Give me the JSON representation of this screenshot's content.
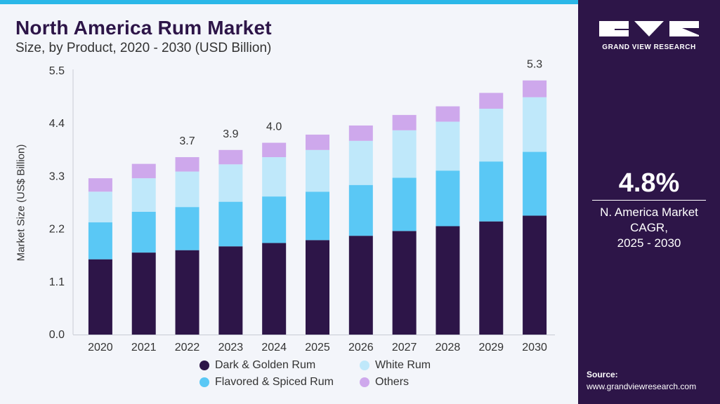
{
  "title": "North America Rum Market",
  "subtitle": "Size, by Product, 2020 - 2030 (USD Billion)",
  "colors": {
    "dark": "#2d1548",
    "flavored": "#5ac8f5",
    "white": "#bfe8fa",
    "others": "#cea8ec",
    "accent": "#2ab7e8"
  },
  "chart_data": {
    "type": "bar",
    "stacked": true,
    "categories": [
      "2020",
      "2021",
      "2022",
      "2023",
      "2024",
      "2025",
      "2026",
      "2027",
      "2028",
      "2029",
      "2030"
    ],
    "series": [
      {
        "name": "Dark & Golden Rum",
        "color": "#2d1548",
        "values": [
          1.57,
          1.71,
          1.76,
          1.84,
          1.91,
          1.97,
          2.06,
          2.16,
          2.26,
          2.36,
          2.48
        ]
      },
      {
        "name": "Flavored & Spiced Rum",
        "color": "#5ac8f5",
        "values": [
          0.77,
          0.85,
          0.9,
          0.93,
          0.97,
          1.01,
          1.06,
          1.11,
          1.16,
          1.25,
          1.33
        ]
      },
      {
        "name": "White Rum",
        "color": "#bfe8fa",
        "values": [
          0.64,
          0.7,
          0.74,
          0.78,
          0.82,
          0.87,
          0.92,
          0.99,
          1.02,
          1.1,
          1.14
        ]
      },
      {
        "name": "Others",
        "color": "#cea8ec",
        "values": [
          0.28,
          0.3,
          0.3,
          0.3,
          0.3,
          0.32,
          0.32,
          0.32,
          0.32,
          0.33,
          0.35
        ]
      }
    ],
    "total_labels": [
      "",
      "",
      "3.7",
      "3.9",
      "4.0",
      "",
      "",
      "",
      "",
      "",
      "5.3"
    ],
    "title": "North America Rum Market",
    "xlabel": "",
    "ylabel": "Market Size (US$ Billion)",
    "ylim": [
      0,
      5.5
    ],
    "yticks": [
      "0.0",
      "1.1",
      "2.2",
      "3.3",
      "4.4",
      "5.5"
    ],
    "legend_position": "bottom"
  },
  "legend": {
    "items": [
      {
        "label": "Dark & Golden Rum",
        "color": "#2d1548"
      },
      {
        "label": "White Rum",
        "color": "#bfe8fa"
      },
      {
        "label": "Flavored & Spiced Rum",
        "color": "#5ac8f5"
      },
      {
        "label": "Others",
        "color": "#cea8ec"
      }
    ]
  },
  "side": {
    "logo_text": "GRAND VIEW RESEARCH",
    "cagr_value": "4.8%",
    "cagr_line1": "N. America Market",
    "cagr_line2": "CAGR,",
    "cagr_line3": "2025 - 2030",
    "source_label": "Source:",
    "source_url": "www.grandviewresearch.com"
  }
}
